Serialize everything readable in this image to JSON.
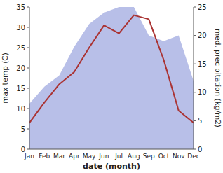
{
  "chart_data": {
    "type": "line",
    "categories": [
      "Jan",
      "Feb",
      "Mar",
      "Apr",
      "May",
      "Jun",
      "Jul",
      "Aug",
      "Sep",
      "Oct",
      "Nov",
      "Dec"
    ],
    "series": [
      {
        "type": "area",
        "axis": "y2",
        "color": "#b8bfe8",
        "values": [
          8,
          11,
          13,
          18,
          22,
          24,
          25,
          25,
          20,
          19,
          20,
          12
        ]
      },
      {
        "type": "line",
        "color": "#aa3333",
        "values": [
          6.5,
          11.5,
          16.0,
          19.0,
          25.0,
          30.5,
          28.5,
          33.0,
          32.0,
          22.0,
          9.5,
          6.5
        ]
      }
    ],
    "xlabel": "date (month)",
    "ylabel": "max temp (C)",
    "y2label": "med. precipitation (kg/m2)",
    "ylim": [
      0,
      35
    ],
    "yticks": [
      0,
      5,
      10,
      15,
      20,
      25,
      30,
      35
    ],
    "y2lim": [
      0,
      25
    ],
    "y2ticks": [
      0,
      5,
      10,
      15,
      20,
      25
    ]
  }
}
